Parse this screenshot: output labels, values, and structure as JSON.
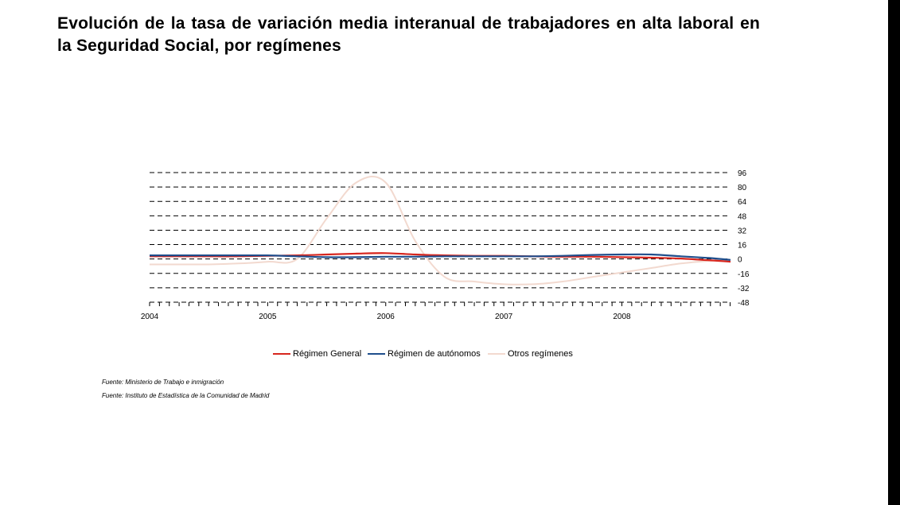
{
  "title": "Evolución de la tasa de variación media interanual de trabajadores en alta laboral en la Seguridad Social, por  regímenes",
  "sources": [
    "Fuente: Ministerio de Trabajo e inmigración",
    "Fuente: Instituto de Estadística de la Comunidad de Madrid"
  ],
  "colors": {
    "general": "#d7261e",
    "autonomos": "#1f4e8c",
    "otros": "#f2d9cf",
    "grid": "#000000"
  },
  "chart_data": {
    "type": "line",
    "title": "Evolución de la tasa de variación media interanual de trabajadores en alta laboral en la Seguridad Social, por  regímenes",
    "x_tick_labels": [
      "2004",
      "2005",
      "2006",
      "2007",
      "2008"
    ],
    "y_ticks": [
      96,
      80,
      64,
      48,
      32,
      16,
      0,
      -16,
      -32,
      -48
    ],
    "ylim": [
      -48,
      96
    ],
    "y_axis_side": "right",
    "grid": "horizontal dashed",
    "legend_position": "bottom",
    "x": [
      2004.0,
      2004.25,
      2004.5,
      2004.75,
      2005.0,
      2005.25,
      2005.5,
      2005.75,
      2006.0,
      2006.25,
      2006.5,
      2006.75,
      2007.0,
      2007.25,
      2007.5,
      2007.75,
      2008.0,
      2008.25,
      2008.5,
      2008.75,
      2008.92
    ],
    "series": [
      {
        "name": "Régimen General",
        "color_key": "general",
        "values": [
          3,
          3,
          3,
          3,
          3.5,
          4,
          5,
          6,
          6.5,
          5,
          4,
          3.5,
          3.5,
          3,
          2.5,
          2.5,
          2,
          1.5,
          0.5,
          -1.5,
          -3
        ]
      },
      {
        "name": "Régimen de autónomos",
        "color_key": "autonomos",
        "values": [
          4,
          4,
          4,
          4,
          4,
          3,
          2,
          2,
          2.5,
          2.5,
          3,
          3,
          3,
          3,
          3.5,
          4.5,
          5,
          5,
          3,
          1,
          -1
        ]
      },
      {
        "name": "Otros regímenes",
        "color_key": "otros",
        "values": [
          -6,
          -6,
          -6,
          -5,
          -3,
          0,
          45,
          85,
          85,
          20,
          -20,
          -25,
          -28,
          -28,
          -25,
          -20,
          -15,
          -10,
          -5,
          -2,
          -1
        ]
      }
    ]
  }
}
